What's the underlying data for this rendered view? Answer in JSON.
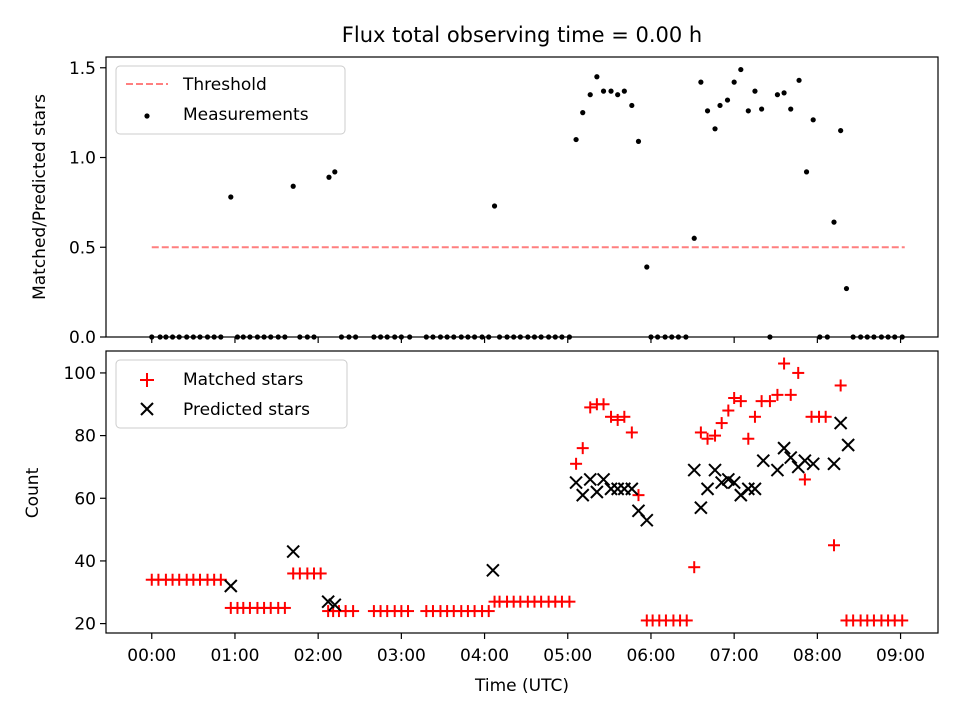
{
  "title": "Flux total observing time = 0.00 h",
  "chart_data": [
    {
      "type": "scatter",
      "ylabel": "Matched/Predicted stars",
      "ylim": [
        0,
        1.56
      ],
      "yticks": [
        "0.0",
        "0.5",
        "1.0",
        "1.5"
      ],
      "ytick_values": [
        0,
        0.5,
        1.0,
        1.5
      ],
      "legend": [
        "Threshold",
        "Measurements"
      ],
      "legend_position": "top-left",
      "threshold": {
        "name": "Threshold",
        "value": 0.5,
        "x_start": 0,
        "x_end": 9.05,
        "color": "#ff7f7f"
      },
      "series": [
        {
          "name": "Measurements",
          "color": "#000000",
          "points": [
            [
              0.0,
              0
            ],
            [
              0.1,
              0
            ],
            [
              0.17,
              0
            ],
            [
              0.25,
              0
            ],
            [
              0.33,
              0
            ],
            [
              0.42,
              0
            ],
            [
              0.5,
              0
            ],
            [
              0.58,
              0
            ],
            [
              0.67,
              0
            ],
            [
              0.75,
              0
            ],
            [
              0.83,
              0
            ],
            [
              0.95,
              0.78
            ],
            [
              1.03,
              0
            ],
            [
              1.1,
              0
            ],
            [
              1.18,
              0
            ],
            [
              1.27,
              0
            ],
            [
              1.35,
              0
            ],
            [
              1.43,
              0
            ],
            [
              1.52,
              0
            ],
            [
              1.6,
              0
            ],
            [
              1.7,
              0.84
            ],
            [
              1.78,
              0
            ],
            [
              1.87,
              0
            ],
            [
              1.95,
              0
            ],
            [
              2.13,
              0.89
            ],
            [
              2.2,
              0.92
            ],
            [
              2.28,
              0
            ],
            [
              2.37,
              0
            ],
            [
              2.45,
              0
            ],
            [
              2.67,
              0
            ],
            [
              2.75,
              0
            ],
            [
              2.83,
              0
            ],
            [
              2.92,
              0
            ],
            [
              3.0,
              0
            ],
            [
              3.1,
              0
            ],
            [
              3.3,
              0
            ],
            [
              3.38,
              0
            ],
            [
              3.47,
              0
            ],
            [
              3.55,
              0
            ],
            [
              3.63,
              0
            ],
            [
              3.72,
              0
            ],
            [
              3.8,
              0
            ],
            [
              3.88,
              0
            ],
            [
              3.97,
              0
            ],
            [
              4.05,
              0
            ],
            [
              4.12,
              0.73
            ],
            [
              4.18,
              0
            ],
            [
              4.27,
              0
            ],
            [
              4.35,
              0
            ],
            [
              4.43,
              0
            ],
            [
              4.52,
              0
            ],
            [
              4.6,
              0
            ],
            [
              4.68,
              0
            ],
            [
              4.77,
              0
            ],
            [
              4.85,
              0
            ],
            [
              4.93,
              0
            ],
            [
              5.02,
              0
            ],
            [
              5.1,
              1.1
            ],
            [
              5.18,
              1.25
            ],
            [
              5.27,
              1.35
            ],
            [
              5.35,
              1.45
            ],
            [
              5.43,
              1.37
            ],
            [
              5.52,
              1.37
            ],
            [
              5.6,
              1.35
            ],
            [
              5.68,
              1.37
            ],
            [
              5.77,
              1.29
            ],
            [
              5.85,
              1.09
            ],
            [
              5.95,
              0.39
            ],
            [
              6.0,
              0
            ],
            [
              6.08,
              0
            ],
            [
              6.17,
              0
            ],
            [
              6.25,
              0
            ],
            [
              6.33,
              0
            ],
            [
              6.42,
              0
            ],
            [
              6.52,
              0.55
            ],
            [
              6.6,
              1.42
            ],
            [
              6.68,
              1.26
            ],
            [
              6.77,
              1.16
            ],
            [
              6.83,
              1.29
            ],
            [
              6.92,
              1.32
            ],
            [
              7.0,
              1.42
            ],
            [
              7.08,
              1.49
            ],
            [
              7.17,
              1.26
            ],
            [
              7.25,
              1.37
            ],
            [
              7.33,
              1.27
            ],
            [
              7.43,
              0
            ],
            [
              7.52,
              1.35
            ],
            [
              7.6,
              1.36
            ],
            [
              7.68,
              1.27
            ],
            [
              7.78,
              1.43
            ],
            [
              7.87,
              0.92
            ],
            [
              7.95,
              1.21
            ],
            [
              8.03,
              0
            ],
            [
              8.12,
              0
            ],
            [
              8.2,
              0.64
            ],
            [
              8.28,
              1.15
            ],
            [
              8.35,
              0.27
            ],
            [
              8.43,
              0
            ],
            [
              8.52,
              0
            ],
            [
              8.6,
              0
            ],
            [
              8.68,
              0
            ],
            [
              8.77,
              0
            ],
            [
              8.85,
              0
            ],
            [
              8.93,
              0
            ],
            [
              9.02,
              0
            ]
          ]
        }
      ]
    },
    {
      "type": "scatter",
      "xlabel": "Time (UTC)",
      "ylabel": "Count",
      "ylim": [
        17,
        107
      ],
      "yticks": [
        "20",
        "40",
        "60",
        "80",
        "100"
      ],
      "ytick_values": [
        20,
        40,
        60,
        80,
        100
      ],
      "xlim": [
        -0.55,
        9.45
      ],
      "xticks": [
        "00:00",
        "01:00",
        "02:00",
        "03:00",
        "04:00",
        "05:00",
        "06:00",
        "07:00",
        "08:00",
        "09:00"
      ],
      "legend": [
        "Matched stars",
        "Predicted stars"
      ],
      "legend_position": "top-left",
      "series": [
        {
          "name": "Matched stars",
          "marker": "plus",
          "color": "#ff0000",
          "points": [
            [
              0.0,
              34
            ],
            [
              0.08,
              34
            ],
            [
              0.17,
              34
            ],
            [
              0.25,
              34
            ],
            [
              0.33,
              34
            ],
            [
              0.42,
              34
            ],
            [
              0.5,
              34
            ],
            [
              0.58,
              34
            ],
            [
              0.67,
              34
            ],
            [
              0.75,
              34
            ],
            [
              0.83,
              34
            ],
            [
              0.95,
              25
            ],
            [
              1.03,
              25
            ],
            [
              1.1,
              25
            ],
            [
              1.18,
              25
            ],
            [
              1.27,
              25
            ],
            [
              1.35,
              25
            ],
            [
              1.43,
              25
            ],
            [
              1.52,
              25
            ],
            [
              1.6,
              25
            ],
            [
              1.7,
              36
            ],
            [
              1.78,
              36
            ],
            [
              1.87,
              36
            ],
            [
              1.95,
              36
            ],
            [
              2.03,
              36
            ],
            [
              2.12,
              24
            ],
            [
              2.18,
              24
            ],
            [
              2.25,
              24
            ],
            [
              2.33,
              24
            ],
            [
              2.42,
              24
            ],
            [
              2.67,
              24
            ],
            [
              2.75,
              24
            ],
            [
              2.83,
              24
            ],
            [
              2.92,
              24
            ],
            [
              3.0,
              24
            ],
            [
              3.08,
              24
            ],
            [
              3.3,
              24
            ],
            [
              3.38,
              24
            ],
            [
              3.47,
              24
            ],
            [
              3.55,
              24
            ],
            [
              3.63,
              24
            ],
            [
              3.72,
              24
            ],
            [
              3.8,
              24
            ],
            [
              3.88,
              24
            ],
            [
              3.97,
              24
            ],
            [
              4.05,
              24
            ],
            [
              4.12,
              27
            ],
            [
              4.18,
              27
            ],
            [
              4.27,
              27
            ],
            [
              4.35,
              27
            ],
            [
              4.43,
              27
            ],
            [
              4.52,
              27
            ],
            [
              4.6,
              27
            ],
            [
              4.68,
              27
            ],
            [
              4.77,
              27
            ],
            [
              4.85,
              27
            ],
            [
              4.93,
              27
            ],
            [
              5.02,
              27
            ],
            [
              5.1,
              71
            ],
            [
              5.18,
              76
            ],
            [
              5.27,
              89
            ],
            [
              5.35,
              90
            ],
            [
              5.43,
              90
            ],
            [
              5.52,
              86
            ],
            [
              5.6,
              85
            ],
            [
              5.68,
              86
            ],
            [
              5.77,
              81
            ],
            [
              5.85,
              61
            ],
            [
              5.95,
              21
            ],
            [
              6.02,
              21
            ],
            [
              6.1,
              21
            ],
            [
              6.18,
              21
            ],
            [
              6.27,
              21
            ],
            [
              6.35,
              21
            ],
            [
              6.43,
              21
            ],
            [
              6.52,
              38
            ],
            [
              6.6,
              81
            ],
            [
              6.68,
              79
            ],
            [
              6.77,
              80
            ],
            [
              6.85,
              84
            ],
            [
              6.93,
              88
            ],
            [
              7.0,
              92
            ],
            [
              7.08,
              91
            ],
            [
              7.17,
              79
            ],
            [
              7.25,
              86
            ],
            [
              7.33,
              91
            ],
            [
              7.43,
              91
            ],
            [
              7.52,
              93
            ],
            [
              7.6,
              103
            ],
            [
              7.68,
              93
            ],
            [
              7.77,
              100
            ],
            [
              7.85,
              66
            ],
            [
              7.93,
              86
            ],
            [
              8.02,
              86
            ],
            [
              8.1,
              86
            ],
            [
              8.2,
              45
            ],
            [
              8.28,
              96
            ],
            [
              8.35,
              21
            ],
            [
              8.43,
              21
            ],
            [
              8.52,
              21
            ],
            [
              8.6,
              21
            ],
            [
              8.68,
              21
            ],
            [
              8.77,
              21
            ],
            [
              8.85,
              21
            ],
            [
              8.93,
              21
            ],
            [
              9.02,
              21
            ]
          ]
        },
        {
          "name": "Predicted stars",
          "marker": "x",
          "color": "#000000",
          "points": [
            [
              0.95,
              32
            ],
            [
              1.7,
              43
            ],
            [
              2.12,
              27
            ],
            [
              2.2,
              26
            ],
            [
              4.1,
              37
            ],
            [
              5.1,
              65
            ],
            [
              5.18,
              61
            ],
            [
              5.27,
              66
            ],
            [
              5.35,
              62
            ],
            [
              5.43,
              66
            ],
            [
              5.52,
              63
            ],
            [
              5.6,
              63
            ],
            [
              5.68,
              63
            ],
            [
              5.77,
              63
            ],
            [
              5.85,
              56
            ],
            [
              5.95,
              53
            ],
            [
              6.52,
              69
            ],
            [
              6.6,
              57
            ],
            [
              6.68,
              63
            ],
            [
              6.77,
              69
            ],
            [
              6.85,
              65
            ],
            [
              6.93,
              66
            ],
            [
              7.0,
              65
            ],
            [
              7.08,
              61
            ],
            [
              7.17,
              63
            ],
            [
              7.25,
              63
            ],
            [
              7.35,
              72
            ],
            [
              7.52,
              69
            ],
            [
              7.6,
              76
            ],
            [
              7.68,
              73
            ],
            [
              7.77,
              70
            ],
            [
              7.85,
              72
            ],
            [
              7.95,
              71
            ],
            [
              8.2,
              71
            ],
            [
              8.28,
              84
            ],
            [
              8.37,
              77
            ]
          ]
        }
      ]
    }
  ]
}
